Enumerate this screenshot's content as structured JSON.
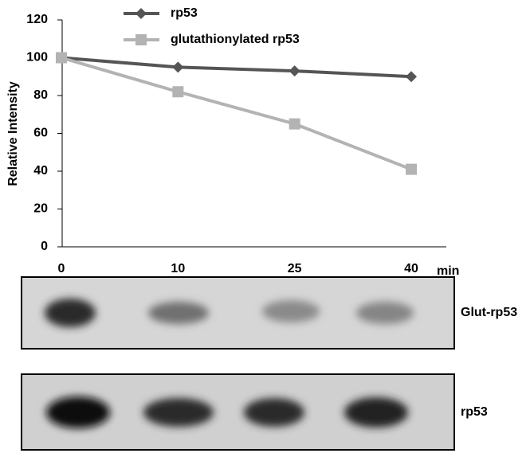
{
  "chart_data": {
    "type": "line",
    "categories": [
      "0",
      "10",
      "25",
      "40"
    ],
    "x_unit": "min",
    "y_label": "Relative Intensity",
    "ylim": [
      0,
      120
    ],
    "yticks": [
      0,
      20,
      40,
      60,
      80,
      100,
      120
    ],
    "series": [
      {
        "name": "rp53",
        "color": "#555555",
        "marker": "diamond",
        "values": [
          100,
          95,
          93,
          90
        ]
      },
      {
        "name": "glutathionylated rp53",
        "color": "#b3b3b3",
        "marker": "square",
        "values": [
          100,
          82,
          65,
          41
        ]
      }
    ]
  },
  "blots": [
    {
      "label": "Glut-rp53"
    },
    {
      "label": "rp53"
    }
  ]
}
